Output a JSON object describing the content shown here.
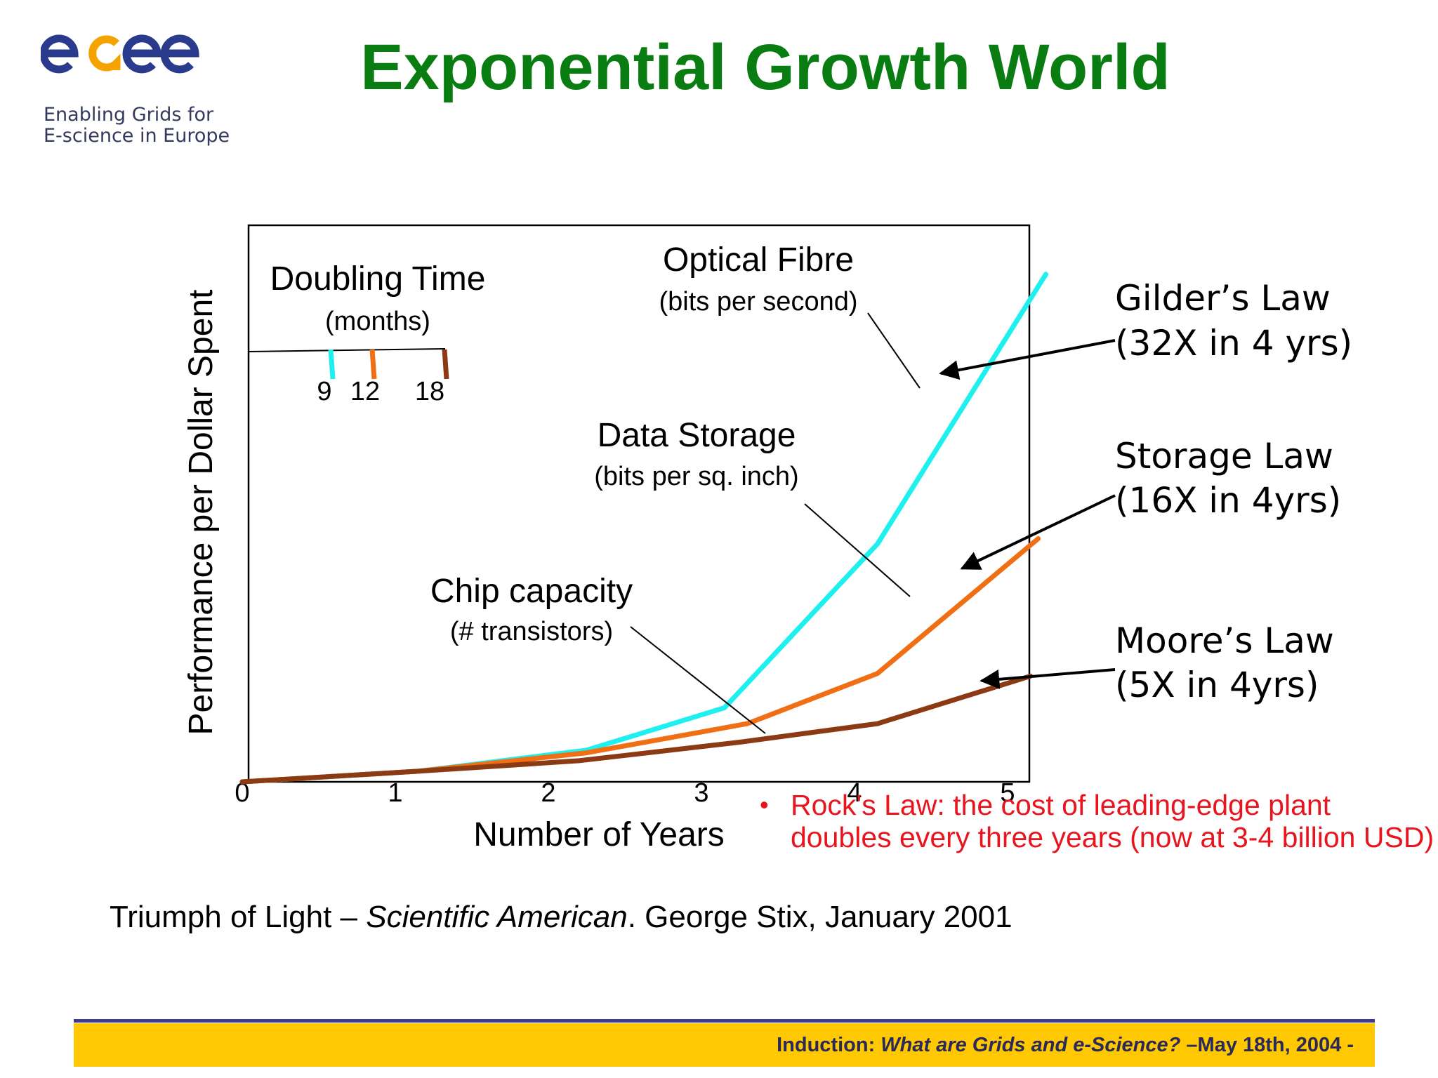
{
  "logo": {
    "name": "egee",
    "tagline_line1": "Enabling Grids for",
    "tagline_line2": "E-science in Europe",
    "colors": {
      "blue": "#2a3a8c",
      "orange": "#f5a300"
    }
  },
  "slide": {
    "title": "Exponential Growth World",
    "rocks_law": "Rock's Law: the cost of leading-edge plant doubles every three years (now at 3-4 billion USD)",
    "citation_pre": "Triumph of Light – ",
    "citation_italic": "Scientific American",
    "citation_post": ". George Stix, January 2001",
    "footer_pre": "Induction: ",
    "footer_italic": "What are Grids and e-Science?",
    "footer_post": " –May 18th, 2004  -"
  },
  "chart_data": {
    "type": "line",
    "xlabel": "Number of Years",
    "ylabel": "Performance per Dollar Spent",
    "xlim": [
      0,
      5.15
    ],
    "ylim": [
      0,
      1
    ],
    "x_ticks": [
      "0",
      "1",
      "2",
      "3",
      "4",
      "5"
    ],
    "grid": false,
    "doubling_time": {
      "title": "Doubling Time",
      "unit": "(months)",
      "marks": [
        {
          "label": "9",
          "color": "#1ef0f0"
        },
        {
          "label": "12",
          "color": "#f06e14"
        },
        {
          "label": "18",
          "color": "#8c3a14"
        }
      ]
    },
    "series": [
      {
        "name": "Optical Fibre",
        "unit": "(bits per second)",
        "color": "#1ef0f0",
        "points": [
          [
            0,
            0
          ],
          [
            1.15,
            0.02
          ],
          [
            2.25,
            0.06
          ],
          [
            3.15,
            0.14
          ],
          [
            4.15,
            0.45
          ],
          [
            5.25,
            0.96
          ]
        ]
      },
      {
        "name": "Data Storage",
        "unit": "(bits per sq. inch)",
        "color": "#f06e14",
        "points": [
          [
            0,
            0
          ],
          [
            1.15,
            0.02
          ],
          [
            2.25,
            0.055
          ],
          [
            3.3,
            0.11
          ],
          [
            4.15,
            0.205
          ],
          [
            5.2,
            0.46
          ]
        ]
      },
      {
        "name": "Chip capacity",
        "unit": "(# transistors)",
        "color": "#8c3a14",
        "points": [
          [
            0,
            0
          ],
          [
            1.15,
            0.02
          ],
          [
            2.2,
            0.04
          ],
          [
            3.25,
            0.075
          ],
          [
            4.15,
            0.11
          ],
          [
            5.15,
            0.2
          ]
        ]
      }
    ],
    "laws": [
      {
        "name": "Gilder’s Law",
        "detail": "(32X in 4 yrs)"
      },
      {
        "name": "Storage Law",
        "detail": "(16X in 4yrs)"
      },
      {
        "name": "Moore’s Law",
        "detail": "(5X in 4yrs)"
      }
    ]
  }
}
